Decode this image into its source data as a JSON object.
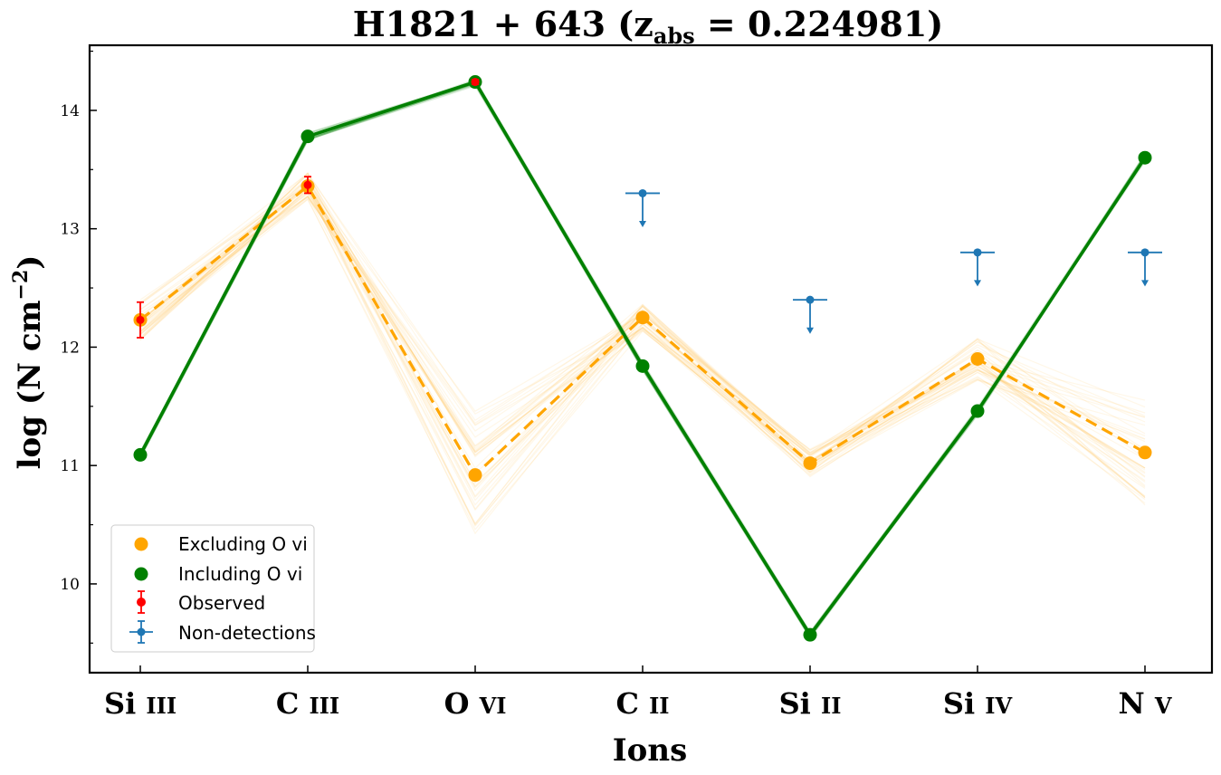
{
  "chart_data": {
    "type": "line",
    "title": "H1821 + 643 (z",
    "title_sub": "abs",
    "title_tail": " = 0.224981)",
    "xlabel": "Ions",
    "ylabel": "log (N cm",
    "ylabel_sup": "−2",
    "ylabel_tail": ")",
    "categories": [
      "Si III",
      "C III",
      "O VI",
      "C II",
      "Si II",
      "Si IV",
      "N V"
    ],
    "category_labels": [
      {
        "main": "Si",
        "ion": "III"
      },
      {
        "main": "C",
        "ion": "III"
      },
      {
        "main": "O",
        "ion": "VI"
      },
      {
        "main": "C",
        "ion": "II"
      },
      {
        "main": "Si",
        "ion": "II"
      },
      {
        "main": "Si",
        "ion": "IV"
      },
      {
        "main": "N",
        "ion": "V"
      }
    ],
    "ylim": [
      9.25,
      14.55
    ],
    "yticks": [
      10,
      11,
      12,
      13,
      14
    ],
    "grid": false,
    "legend_position": "lower-left",
    "colors": {
      "excluding": "#ffa500",
      "including": "#008000",
      "observed": "#ff0000",
      "nondetection": "#1f77b4"
    },
    "series": [
      {
        "name": "Excluding O vi",
        "style": "dashed",
        "values": [
          12.23,
          13.36,
          10.92,
          12.25,
          11.02,
          11.9,
          11.11
        ]
      },
      {
        "name": "Including O vi",
        "style": "solid",
        "values": [
          11.09,
          13.78,
          14.24,
          11.84,
          9.57,
          11.46,
          13.6
        ]
      }
    ],
    "observed": {
      "name": "Observed",
      "points": [
        {
          "category": "Si III",
          "value": 12.23,
          "err": 0.15
        },
        {
          "category": "C III",
          "value": 13.37,
          "err": 0.07
        },
        {
          "category": "O VI",
          "value": 14.24,
          "err": 0.02
        }
      ]
    },
    "nondetections": {
      "name": "Non-detections",
      "points": [
        {
          "category": "C II",
          "value": 13.3
        },
        {
          "category": "Si II",
          "value": 12.4
        },
        {
          "category": "Si IV",
          "value": 12.8
        },
        {
          "category": "N V",
          "value": 12.8
        }
      ]
    }
  }
}
